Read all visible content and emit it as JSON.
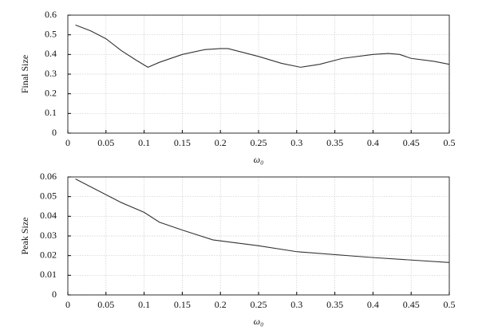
{
  "chart_data": [
    {
      "type": "line",
      "xlabel": "ω₀",
      "ylabel": "Final Size",
      "xlim": [
        0,
        0.5
      ],
      "ylim": [
        0,
        0.6
      ],
      "xticks": [
        0,
        0.05,
        0.1,
        0.15,
        0.2,
        0.25,
        0.3,
        0.35,
        0.4,
        0.45,
        0.5
      ],
      "yticks": [
        0,
        0.1,
        0.2,
        0.3,
        0.4,
        0.5,
        0.6
      ],
      "grid": true,
      "x": [
        0.01,
        0.03,
        0.05,
        0.07,
        0.09,
        0.105,
        0.12,
        0.15,
        0.18,
        0.2,
        0.21,
        0.25,
        0.28,
        0.305,
        0.33,
        0.36,
        0.4,
        0.42,
        0.435,
        0.45,
        0.48,
        0.5
      ],
      "series": [
        {
          "color": "#333333",
          "values": [
            0.55,
            0.52,
            0.48,
            0.42,
            0.37,
            0.335,
            0.36,
            0.4,
            0.425,
            0.43,
            0.43,
            0.39,
            0.355,
            0.335,
            0.35,
            0.38,
            0.4,
            0.405,
            0.4,
            0.38,
            0.365,
            0.35
          ]
        }
      ]
    },
    {
      "type": "line",
      "xlabel": "ω₀",
      "ylabel": "Peak Size",
      "xlim": [
        0,
        0.5
      ],
      "ylim": [
        0,
        0.06
      ],
      "xticks": [
        0,
        0.05,
        0.1,
        0.15,
        0.2,
        0.25,
        0.3,
        0.35,
        0.4,
        0.45,
        0.5
      ],
      "yticks": [
        0,
        0.01,
        0.02,
        0.03,
        0.04,
        0.05,
        0.06
      ],
      "grid": true,
      "x": [
        0.01,
        0.03,
        0.05,
        0.07,
        0.1,
        0.12,
        0.15,
        0.19,
        0.25,
        0.3,
        0.4,
        0.5
      ],
      "series": [
        {
          "color": "#333333",
          "values": [
            0.059,
            0.055,
            0.051,
            0.047,
            0.042,
            0.037,
            0.033,
            0.028,
            0.025,
            0.022,
            0.019,
            0.0165
          ]
        }
      ]
    }
  ]
}
